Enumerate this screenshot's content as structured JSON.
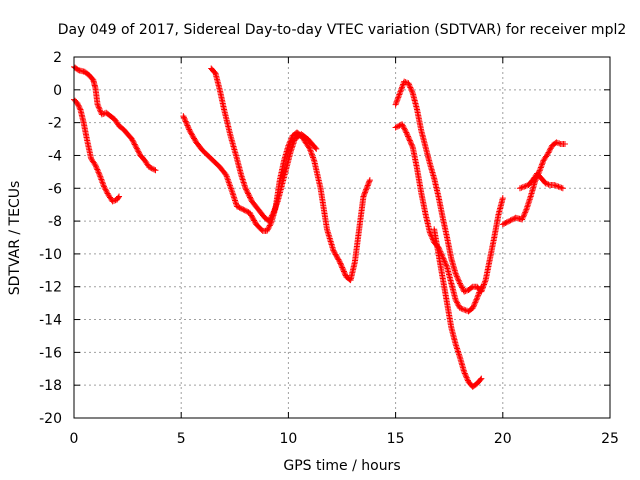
{
  "chart_data": {
    "type": "scatter",
    "title": "Day 049 of 2017, Sidereal Day-to-day VTEC variation (SDTVAR) for receiver mpl2",
    "xlabel": "GPS time / hours",
    "ylabel": "SDTVAR / TECUs",
    "xlim": [
      0,
      25
    ],
    "ylim": [
      -20,
      2
    ],
    "xticks": [
      0,
      5,
      10,
      15,
      20,
      25
    ],
    "yticks": [
      2,
      0,
      -2,
      -4,
      -6,
      -8,
      -10,
      -12,
      -14,
      -16,
      -18,
      -20
    ],
    "grid": true,
    "marker": "+",
    "color": "#ff0000",
    "series": [
      {
        "x": [
          0.0,
          0.2,
          0.5,
          0.7,
          0.9,
          1.0,
          1.1,
          1.3,
          1.5,
          1.7,
          1.9,
          2.1,
          2.3,
          2.5,
          2.7,
          2.9,
          3.1,
          3.3,
          3.5,
          3.8
        ],
        "y": [
          1.4,
          1.2,
          1.1,
          0.9,
          0.6,
          0.1,
          -0.9,
          -1.5,
          -1.4,
          -1.6,
          -1.8,
          -2.2,
          -2.4,
          -2.7,
          -3.0,
          -3.5,
          -4.0,
          -4.3,
          -4.7,
          -4.9
        ]
      },
      {
        "x": [
          0.0,
          0.15,
          0.3,
          0.45,
          0.6,
          0.8,
          1.0,
          1.2,
          1.4,
          1.6,
          1.8,
          2.0,
          2.1
        ],
        "y": [
          -0.6,
          -0.8,
          -1.2,
          -2.0,
          -3.0,
          -4.2,
          -4.6,
          -5.2,
          -5.9,
          -6.4,
          -6.8,
          -6.7,
          -6.5
        ]
      },
      {
        "x": [
          5.1,
          5.4,
          5.7,
          6.0,
          6.4,
          6.8,
          7.1,
          7.4,
          7.6,
          7.9,
          8.2,
          8.5,
          8.8,
          9.0,
          9.2,
          9.4,
          9.6,
          9.8,
          10.0,
          10.2,
          10.4,
          10.6,
          10.8,
          11.0,
          11.2,
          11.5,
          11.8,
          12.1,
          12.4,
          12.7,
          12.9,
          13.1,
          13.3,
          13.5,
          13.8
        ],
        "y": [
          -1.6,
          -2.5,
          -3.2,
          -3.7,
          -4.2,
          -4.7,
          -5.2,
          -6.3,
          -7.1,
          -7.3,
          -7.5,
          -8.2,
          -8.6,
          -8.6,
          -8.1,
          -7.2,
          -5.5,
          -4.3,
          -3.4,
          -2.8,
          -2.6,
          -2.8,
          -3.2,
          -3.6,
          -4.3,
          -6.0,
          -8.5,
          -9.8,
          -10.5,
          -11.4,
          -11.6,
          -10.5,
          -8.5,
          -6.5,
          -5.5
        ]
      },
      {
        "x": [
          6.4,
          6.6,
          6.8,
          7.0,
          7.3,
          7.6,
          7.8,
          8.0,
          8.3,
          8.6,
          8.9,
          9.1,
          9.3,
          9.5,
          9.7,
          9.9,
          10.1,
          10.3,
          10.6,
          10.9,
          11.1,
          11.3
        ],
        "y": [
          1.3,
          1.0,
          0.0,
          -1.2,
          -2.8,
          -4.2,
          -5.2,
          -6.0,
          -6.8,
          -7.3,
          -7.8,
          -8.0,
          -7.5,
          -6.8,
          -5.8,
          -4.8,
          -3.8,
          -3.0,
          -2.7,
          -3.0,
          -3.3,
          -3.6
        ]
      },
      {
        "x": [
          15.0,
          15.2,
          15.4,
          15.6,
          15.8,
          16.0,
          16.2,
          16.4,
          16.6,
          16.8,
          17.0,
          17.2,
          17.4,
          17.6,
          17.8,
          18.0,
          18.2,
          18.4,
          18.6,
          18.8,
          19.0,
          19.2,
          19.4,
          19.6,
          19.8,
          20.0
        ],
        "y": [
          -0.9,
          -0.2,
          0.5,
          0.4,
          -0.2,
          -1.2,
          -2.5,
          -3.5,
          -4.5,
          -5.4,
          -6.5,
          -7.8,
          -9.0,
          -10.3,
          -11.2,
          -11.8,
          -12.3,
          -12.2,
          -12.0,
          -12.0,
          -12.3,
          -11.6,
          -10.3,
          -9.0,
          -7.6,
          -6.6
        ]
      },
      {
        "x": [
          15.0,
          15.3,
          15.5,
          15.8,
          16.0,
          16.2,
          16.4,
          16.6,
          16.8,
          17.0,
          17.2,
          17.4,
          17.6,
          17.8,
          18.0,
          18.2,
          18.4,
          18.6,
          18.8,
          19.0
        ],
        "y": [
          -2.3,
          -2.1,
          -2.6,
          -3.5,
          -4.8,
          -6.3,
          -7.6,
          -8.7,
          -9.3,
          -9.6,
          -10.2,
          -10.8,
          -11.8,
          -12.8,
          -13.3,
          -13.4,
          -13.5,
          -13.3,
          -12.7,
          -12.0
        ]
      },
      {
        "x": [
          16.8,
          17.0,
          17.2,
          17.4,
          17.6,
          17.8,
          18.0,
          18.2,
          18.4,
          18.6,
          18.8,
          19.0
        ],
        "y": [
          -8.5,
          -10.0,
          -11.5,
          -13.0,
          -14.5,
          -15.5,
          -16.3,
          -17.2,
          -17.8,
          -18.1,
          -17.9,
          -17.6
        ]
      },
      {
        "x": [
          20.0,
          20.3,
          20.6,
          20.9,
          21.1,
          21.3,
          21.5,
          21.7,
          21.9,
          22.1,
          22.3,
          22.5,
          22.7,
          22.9
        ],
        "y": [
          -8.2,
          -8.0,
          -7.8,
          -7.9,
          -7.3,
          -6.5,
          -5.6,
          -5.0,
          -4.3,
          -3.9,
          -3.4,
          -3.2,
          -3.3,
          -3.3
        ]
      },
      {
        "x": [
          20.8,
          21.0,
          21.2,
          21.4,
          21.6,
          21.8,
          22.0,
          22.2,
          22.4,
          22.6,
          22.8
        ],
        "y": [
          -6.0,
          -5.9,
          -5.8,
          -5.5,
          -5.1,
          -5.4,
          -5.7,
          -5.8,
          -5.8,
          -5.9,
          -6.0
        ]
      }
    ]
  }
}
